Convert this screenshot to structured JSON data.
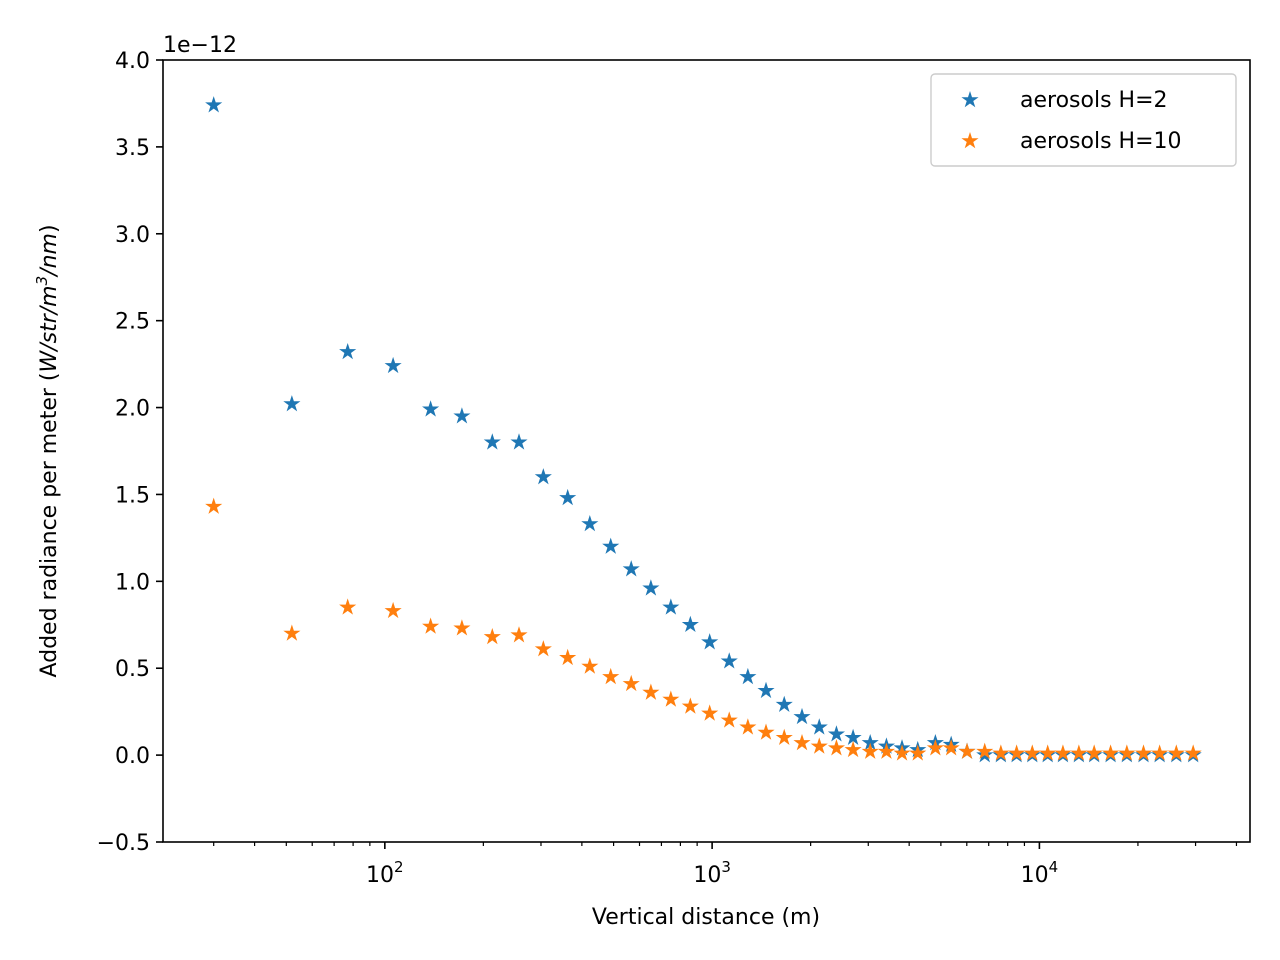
{
  "chart_data": {
    "type": "scatter",
    "title": "",
    "xlabel": "Vertical distance (m)",
    "ylabel_prefix": "Added radiance per meter (",
    "ylabel_unit": "W/str/m",
    "ylabel_sup": "3",
    "ylabel_unit2": "/nm",
    "ylabel_suffix": ")",
    "y_offset_label": "1e−12",
    "xscale": "log",
    "xlim": [
      21,
      44000
    ],
    "ylim": [
      -0.5,
      4.0
    ],
    "y_ticks": [
      -0.5,
      0.0,
      0.5,
      1.0,
      1.5,
      2.0,
      2.5,
      3.0,
      3.5,
      4.0
    ],
    "y_tick_labels": [
      "−0.5",
      "0.0",
      "0.5",
      "1.0",
      "1.5",
      "2.0",
      "2.5",
      "3.0",
      "3.5",
      "4.0"
    ],
    "x_major_ticks": [
      100,
      1000,
      10000
    ],
    "x_tick_base": "10",
    "x_tick_exps": [
      "2",
      "3",
      "4"
    ],
    "marker": "star",
    "grid": false,
    "legend_position": "top-right",
    "x": [
      30,
      52,
      77,
      106,
      138,
      172,
      213,
      257,
      305,
      362,
      423,
      490,
      566,
      650,
      748,
      858,
      983,
      1128,
      1286,
      1461,
      1661,
      1882,
      2125,
      2398,
      2696,
      3041,
      3409,
      3804,
      4249,
      4810,
      5375,
      6010,
      6807,
      7625,
      8518,
      9511,
      10600,
      11800,
      13200,
      14700,
      16500,
      18500,
      20800,
      23300,
      26200,
      29500
    ],
    "series": [
      {
        "name": "aerosols H=2",
        "color": "#1f77b4",
        "values": [
          3.74,
          2.02,
          2.32,
          2.24,
          1.99,
          1.95,
          1.8,
          1.8,
          1.6,
          1.48,
          1.33,
          1.2,
          1.07,
          0.96,
          0.85,
          0.75,
          0.65,
          0.54,
          0.45,
          0.37,
          0.29,
          0.22,
          0.16,
          0.12,
          0.1,
          0.07,
          0.05,
          0.04,
          0.03,
          0.07,
          0.06,
          0.02,
          0.0,
          0.0,
          0.0,
          0.0,
          0.0,
          0.0,
          0.0,
          0.0,
          0.0,
          0.0,
          0.0,
          0.0,
          0.0,
          0.0
        ]
      },
      {
        "name": "aerosols H=10",
        "color": "#ff7f0e",
        "values": [
          1.43,
          0.7,
          0.85,
          0.83,
          0.74,
          0.73,
          0.68,
          0.69,
          0.61,
          0.56,
          0.51,
          0.45,
          0.41,
          0.36,
          0.32,
          0.28,
          0.24,
          0.2,
          0.16,
          0.13,
          0.1,
          0.07,
          0.05,
          0.04,
          0.03,
          0.02,
          0.02,
          0.01,
          0.01,
          0.04,
          0.04,
          0.02,
          0.02,
          0.01,
          0.01,
          0.01,
          0.01,
          0.01,
          0.01,
          0.01,
          0.01,
          0.01,
          0.01,
          0.01,
          0.01,
          0.01
        ]
      }
    ]
  }
}
